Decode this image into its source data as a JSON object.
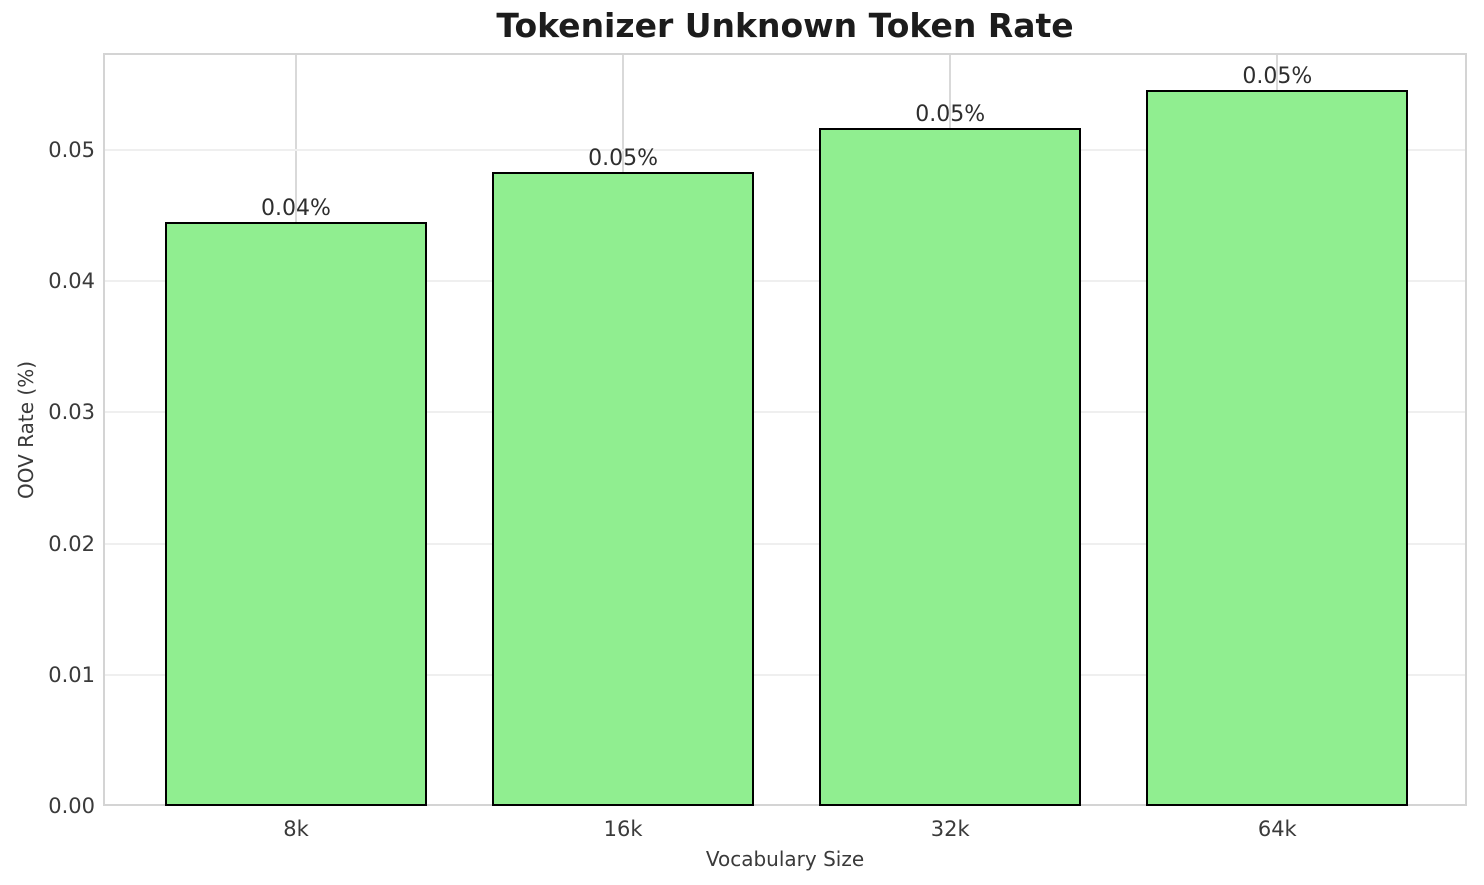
{
  "chart_data": {
    "type": "bar",
    "title": "Tokenizer Unknown Token Rate",
    "xlabel": "Vocabulary Size",
    "ylabel": "OOV Rate (%)",
    "categories": [
      "8k",
      "16k",
      "32k",
      "64k"
    ],
    "values": [
      0.0445,
      0.0483,
      0.0517,
      0.0546
    ],
    "bar_labels": [
      "0.04%",
      "0.05%",
      "0.05%",
      "0.05%"
    ],
    "yticks": [
      0,
      0.01,
      0.02,
      0.03,
      0.04,
      0.05
    ],
    "ytick_labels": [
      "0.00",
      "0.01",
      "0.02",
      "0.03",
      "0.04",
      "0.05"
    ],
    "ylim": [
      0,
      0.0574
    ],
    "xlim": [
      -0.59,
      3.58
    ],
    "bar_width": 0.8,
    "grid": true,
    "legend": "none",
    "colors": {
      "bar_fill": "#90EE90",
      "bar_edge": "#000000",
      "grid_horizontal": "#efefef",
      "grid_vertical": "#d9d9d9",
      "spine": "#d4d4d4",
      "title_text": "#1c1c1c",
      "tick_text": "#3a3a3a",
      "background": "#ffffff"
    }
  }
}
